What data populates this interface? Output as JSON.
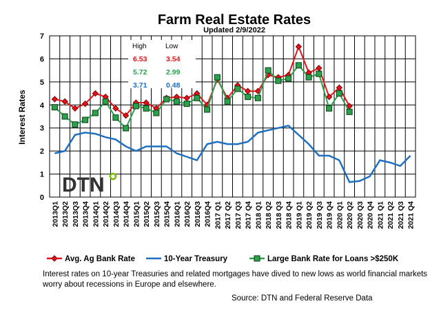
{
  "chart_data": {
    "type": "line",
    "title": "Farm Real Estate Rates",
    "subtitle": "Updated  2/9/2022",
    "y_label": "Interest Rates",
    "logo": "DTN",
    "categories": [
      "2013Q1",
      "2013Q2",
      "2013Q3",
      "2013Q4",
      "2014Q1",
      "2014Q2",
      "2014Q3",
      "2014Q4",
      "2015Q1",
      "2015Q2",
      "2015Q3",
      "2015Q4",
      "2016Q1",
      "2016Q2",
      "2016Q3",
      "2016Q4",
      "2017 Q1",
      "2017 Q2",
      "2017 Q3",
      "2017 Q4",
      "2018 Q1",
      "2018 Q2",
      "2018 Q3",
      "2018 Q4",
      "2019 Q1",
      "2019 Q2",
      "2019 Q3",
      "2019 Q4",
      "2020 Q1",
      "2020 Q2",
      "2020 Q3",
      "2020 Q4",
      "2021 Q1",
      "2021 Q2",
      "2021 Q3",
      "2021 Q4"
    ],
    "series": [
      {
        "name": "Avg. Ag Bank Rate",
        "color": "#e3141b",
        "marker": "diamond",
        "values": [
          4.25,
          4.15,
          3.85,
          4.05,
          4.5,
          4.35,
          3.85,
          3.54,
          4.1,
          4.1,
          3.85,
          4.3,
          4.35,
          4.3,
          4.5,
          4.0,
          5.1,
          4.3,
          4.85,
          4.6,
          4.6,
          5.3,
          5.2,
          5.3,
          6.53,
          5.4,
          5.6,
          4.35,
          4.75,
          3.95,
          null,
          null,
          null,
          null,
          null,
          null
        ]
      },
      {
        "name": "10-Year Treasury",
        "color": "#1f6fc0",
        "marker": "none",
        "values": [
          1.9,
          2.0,
          2.7,
          2.8,
          2.75,
          2.6,
          2.5,
          2.2,
          2.0,
          2.2,
          2.2,
          2.2,
          1.9,
          1.75,
          1.6,
          2.3,
          2.4,
          2.3,
          2.3,
          2.4,
          2.8,
          2.9,
          3.0,
          3.1,
          2.7,
          2.3,
          1.8,
          1.8,
          1.6,
          0.65,
          0.7,
          0.9,
          1.6,
          1.5,
          1.35,
          1.8
        ]
      },
      {
        "name": "Large Bank Rate for Loans >$250K",
        "color": "#2ca04c",
        "marker": "square",
        "values": [
          3.9,
          3.5,
          3.15,
          3.35,
          3.65,
          4.15,
          3.45,
          2.99,
          3.95,
          3.85,
          3.65,
          4.25,
          4.15,
          4.05,
          4.3,
          3.8,
          5.2,
          4.15,
          4.7,
          4.35,
          4.3,
          5.5,
          5.05,
          5.15,
          5.72,
          5.2,
          5.35,
          3.85,
          4.5,
          3.7,
          null,
          null,
          null,
          null,
          null,
          null
        ]
      }
    ],
    "ylim": [
      0,
      7
    ],
    "yticks": [
      0,
      1,
      2,
      3,
      4,
      5,
      6,
      7
    ],
    "grid": true,
    "extremes": {
      "headers": [
        "High",
        "Low"
      ],
      "rows": [
        [
          6.53,
          3.54
        ],
        [
          5.72,
          2.99
        ],
        [
          3.71,
          0.48
        ]
      ]
    },
    "caption": "Interest rates on 10-year Treasuries and related mortgages have dived to new lows as world financial markets worry about recessions in Europe and elsewhere.",
    "source": "Source: DTN and Federal Reserve Data"
  }
}
